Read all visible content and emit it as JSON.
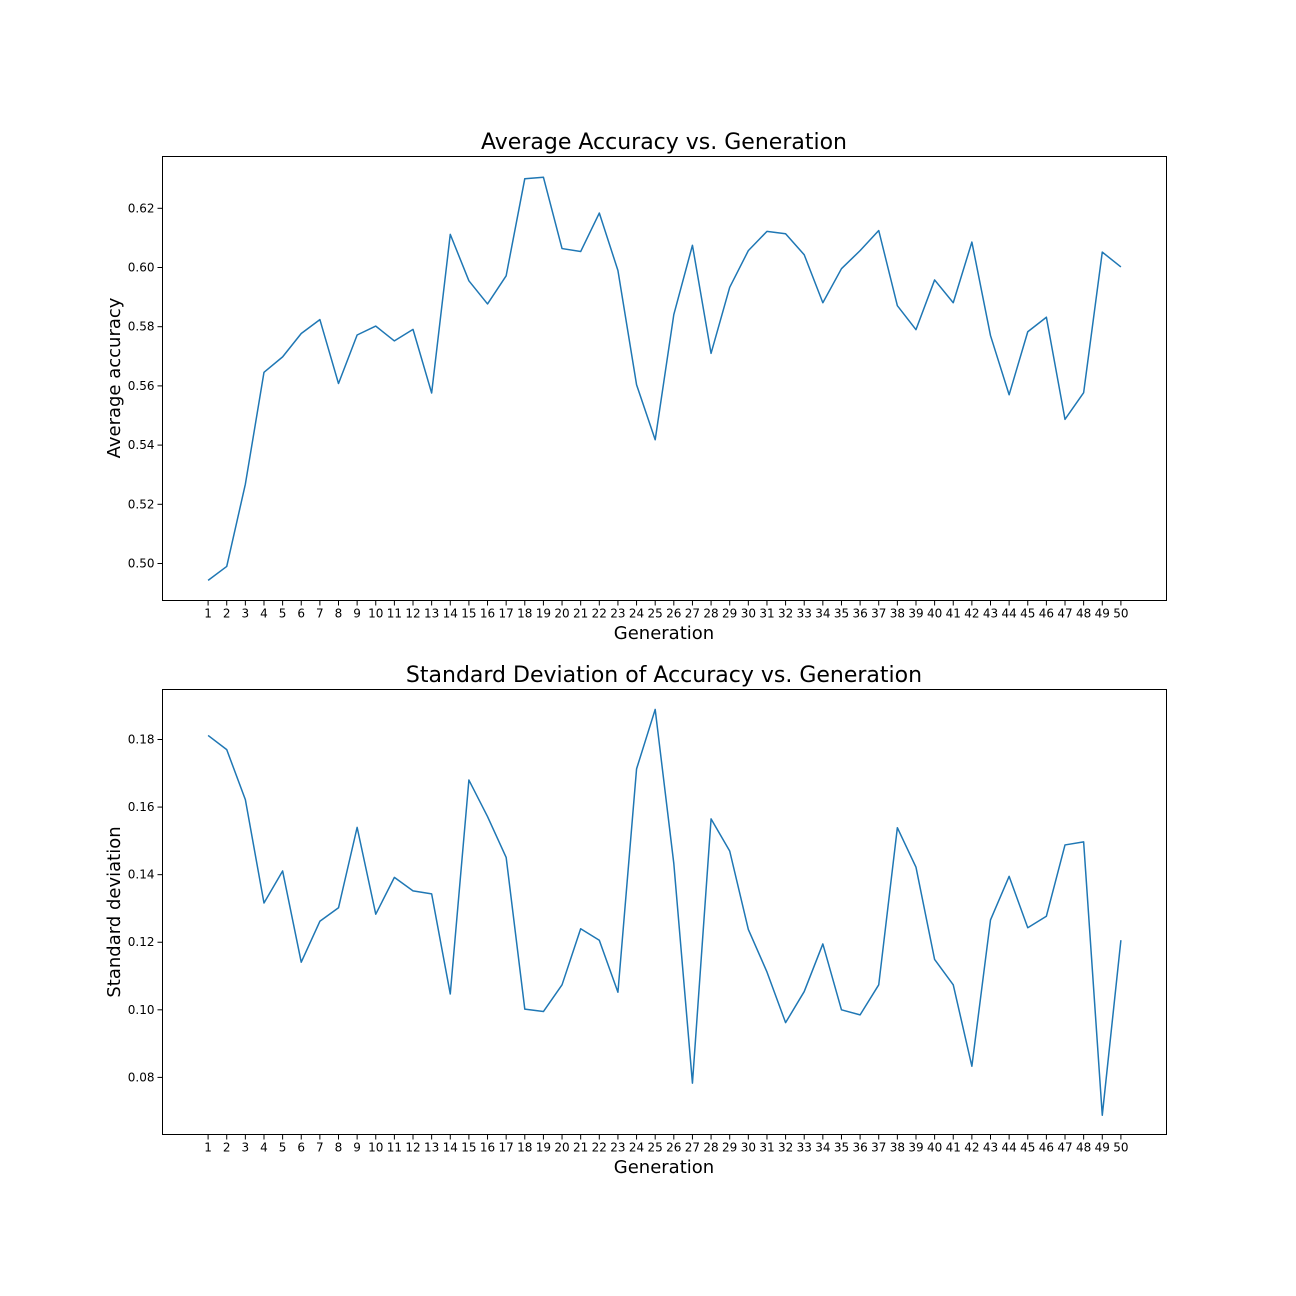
{
  "chart_data": [
    {
      "type": "line",
      "title": "Average Accuracy vs. Generation",
      "xlabel": "Generation",
      "ylabel": "Average accuracy",
      "x": [
        1,
        2,
        3,
        4,
        5,
        6,
        7,
        8,
        9,
        10,
        11,
        12,
        13,
        14,
        15,
        16,
        17,
        18,
        19,
        20,
        21,
        22,
        23,
        24,
        25,
        26,
        27,
        28,
        29,
        30,
        31,
        32,
        33,
        34,
        35,
        36,
        37,
        38,
        39,
        40,
        41,
        42,
        43,
        44,
        45,
        46,
        47,
        48,
        49,
        50
      ],
      "y_tick_values": [
        0.5,
        0.52,
        0.54,
        0.56,
        0.58,
        0.6,
        0.62
      ],
      "y_tick_labels": [
        "0.50",
        "0.52",
        "0.54",
        "0.56",
        "0.58",
        "0.60",
        "0.62"
      ],
      "ylim": [
        0.4875,
        0.6375
      ],
      "grid": false,
      "color": "#1f77b4",
      "series": [
        {
          "values": [
            0.4943,
            0.499,
            0.5268,
            0.5646,
            0.5698,
            0.5777,
            0.5824,
            0.5608,
            0.5772,
            0.5802,
            0.5752,
            0.5791,
            0.5576,
            0.6112,
            0.5955,
            0.5877,
            0.5972,
            0.63,
            0.6305,
            0.6064,
            0.6054,
            0.6184,
            0.599,
            0.5604,
            0.5418,
            0.5841,
            0.6075,
            0.571,
            0.5933,
            0.6057,
            0.6122,
            0.6114,
            0.6043,
            0.5881,
            0.5996,
            0.6057,
            0.6125,
            0.5871,
            0.579,
            0.5958,
            0.5881,
            0.6086,
            0.577,
            0.557,
            0.5783,
            0.5832,
            0.5487,
            0.5577,
            0.6052,
            0.6002
          ]
        }
      ]
    },
    {
      "type": "line",
      "title": "Standard Deviation of Accuracy vs. Generation",
      "xlabel": "Generation",
      "ylabel": "Standard deviation",
      "x": [
        1,
        2,
        3,
        4,
        5,
        6,
        7,
        8,
        9,
        10,
        11,
        12,
        13,
        14,
        15,
        16,
        17,
        18,
        19,
        20,
        21,
        22,
        23,
        24,
        25,
        26,
        27,
        28,
        29,
        30,
        31,
        32,
        33,
        34,
        35,
        36,
        37,
        38,
        39,
        40,
        41,
        42,
        43,
        44,
        45,
        46,
        47,
        48,
        49,
        50
      ],
      "y_tick_values": [
        0.08,
        0.1,
        0.12,
        0.14,
        0.16,
        0.18
      ],
      "y_tick_labels": [
        "0.08",
        "0.10",
        "0.12",
        "0.14",
        "0.16",
        "0.18"
      ],
      "ylim": [
        0.0631,
        0.1948
      ],
      "grid": false,
      "color": "#1f77b4",
      "series": [
        {
          "values": [
            0.1812,
            0.177,
            0.1622,
            0.1316,
            0.1411,
            0.1141,
            0.1262,
            0.1302,
            0.154,
            0.1283,
            0.1392,
            0.1352,
            0.1343,
            0.1047,
            0.168,
            0.1572,
            0.1451,
            0.1002,
            0.0995,
            0.1074,
            0.124,
            0.1206,
            0.1052,
            0.1713,
            0.1889,
            0.1433,
            0.0783,
            0.1565,
            0.147,
            0.1238,
            0.1112,
            0.0962,
            0.1054,
            0.1195,
            0.1,
            0.0985,
            0.1074,
            0.1539,
            0.1422,
            0.1149,
            0.1074,
            0.0833,
            0.1266,
            0.1395,
            0.1243,
            0.1277,
            0.1488,
            0.1497,
            0.0688,
            0.1206
          ]
        }
      ]
    }
  ]
}
